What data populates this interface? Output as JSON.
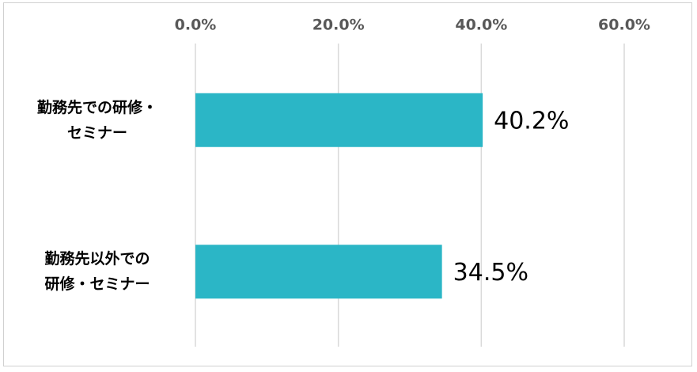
{
  "chart_data": {
    "type": "bar",
    "orientation": "horizontal",
    "categories": [
      "勤務先での研修・\nセミナー",
      "勤務先以外での\n研修・セミナー"
    ],
    "values": [
      40.2,
      34.5
    ],
    "value_labels": [
      "40.2%",
      "34.5%"
    ],
    "color": "#2bb6c6",
    "xlim": [
      0,
      60
    ],
    "xticks": [
      {
        "value": 0,
        "label": "0.0%"
      },
      {
        "value": 20,
        "label": "20.0%"
      },
      {
        "value": 40,
        "label": "40.0%"
      },
      {
        "value": 60,
        "label": "60.0%"
      }
    ],
    "grid": true
  }
}
